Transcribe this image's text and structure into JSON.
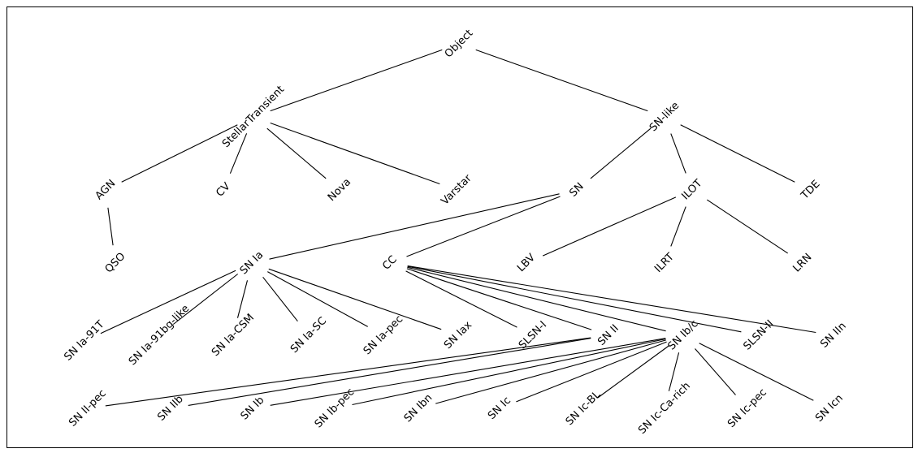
{
  "tree": {
    "nodes": [
      {
        "id": "object",
        "label": "Object",
        "parent": null
      },
      {
        "id": "stellar",
        "label": "StellarTransient",
        "parent": "object"
      },
      {
        "id": "snlike",
        "label": "SN-like",
        "parent": "object"
      },
      {
        "id": "agn",
        "label": "AGN",
        "parent": "stellar"
      },
      {
        "id": "cv",
        "label": "CV",
        "parent": "stellar"
      },
      {
        "id": "nova",
        "label": "Nova",
        "parent": "stellar"
      },
      {
        "id": "varstar",
        "label": "Varstar",
        "parent": "stellar"
      },
      {
        "id": "qso",
        "label": "QSO",
        "parent": "agn"
      },
      {
        "id": "sn",
        "label": "SN",
        "parent": "snlike"
      },
      {
        "id": "ilot",
        "label": "ILOT",
        "parent": "snlike"
      },
      {
        "id": "tde",
        "label": "TDE",
        "parent": "snlike"
      },
      {
        "id": "snia",
        "label": "SN Ia",
        "parent": "sn"
      },
      {
        "id": "cc",
        "label": "CC",
        "parent": "sn"
      },
      {
        "id": "lbv",
        "label": "LBV",
        "parent": "ilot"
      },
      {
        "id": "ilrt",
        "label": "ILRT",
        "parent": "ilot"
      },
      {
        "id": "lrn",
        "label": "LRN",
        "parent": "ilot"
      },
      {
        "id": "snia91t",
        "label": "SN Ia-91T",
        "parent": "snia"
      },
      {
        "id": "snia91bg",
        "label": "SN Ia-91bg-like",
        "parent": "snia"
      },
      {
        "id": "sniacsm",
        "label": "SN Ia-CSM",
        "parent": "snia"
      },
      {
        "id": "sniasc",
        "label": "SN Ia-SC",
        "parent": "snia"
      },
      {
        "id": "sniapec",
        "label": "SN Ia-pec",
        "parent": "snia"
      },
      {
        "id": "sniax",
        "label": "SN Iax",
        "parent": "snia"
      },
      {
        "id": "slsn1",
        "label": "SLSN-I",
        "parent": "cc"
      },
      {
        "id": "snii",
        "label": "SN II",
        "parent": "cc"
      },
      {
        "id": "snibc",
        "label": "SN Ib/c",
        "parent": "cc"
      },
      {
        "id": "slsn2",
        "label": "SLSN-II",
        "parent": "cc"
      },
      {
        "id": "sniin",
        "label": "SN IIn",
        "parent": "cc"
      },
      {
        "id": "sniipec",
        "label": "SN II-pec",
        "parent": "snii"
      },
      {
        "id": "sniib",
        "label": "SN IIb",
        "parent": "snii"
      },
      {
        "id": "snib",
        "label": "SN Ib",
        "parent": "snibc"
      },
      {
        "id": "snibpec",
        "label": "SN Ib-pec",
        "parent": "snibc"
      },
      {
        "id": "snibn",
        "label": "SN Ibn",
        "parent": "snibc"
      },
      {
        "id": "snic",
        "label": "SN Ic",
        "parent": "snibc"
      },
      {
        "id": "snicbl",
        "label": "SN Ic-BL",
        "parent": "snibc"
      },
      {
        "id": "sniccarich",
        "label": "SN Ic-Ca-rich",
        "parent": "snibc"
      },
      {
        "id": "snicpec",
        "label": "SN Ic-pec",
        "parent": "snibc"
      },
      {
        "id": "snicn",
        "label": "SN Icn",
        "parent": "snibc"
      }
    ]
  }
}
